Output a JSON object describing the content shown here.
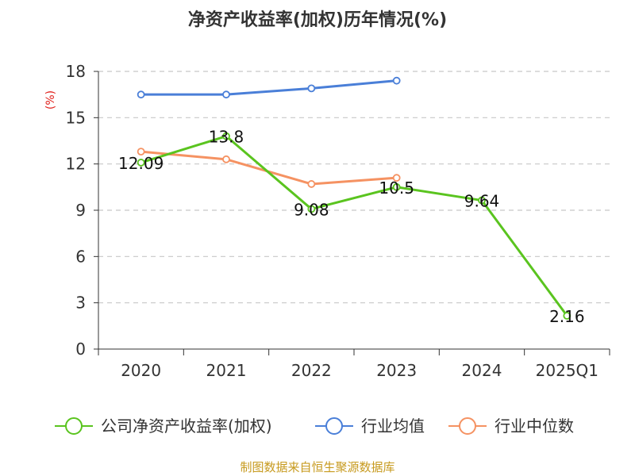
{
  "chart_data": {
    "type": "line",
    "title": "净资产收益率(加权)历年情况(%)",
    "ylabel": "(%)",
    "xlabel": "",
    "categories": [
      "2020",
      "2021",
      "2022",
      "2023",
      "2024",
      "2025Q1"
    ],
    "ylim": [
      0,
      18
    ],
    "yticks": [
      0,
      3,
      6,
      9,
      12,
      15,
      18
    ],
    "grid": true,
    "legend_position": "bottom",
    "series": [
      {
        "name": "公司净资产收益率(加权)",
        "color": "#5ac41f",
        "values": [
          12.09,
          13.8,
          9.08,
          10.5,
          9.64,
          2.16
        ],
        "show_labels": true
      },
      {
        "name": "行业均值",
        "color": "#4a7fd8",
        "values": [
          16.5,
          16.5,
          16.9,
          17.4,
          null,
          null
        ],
        "show_labels": false
      },
      {
        "name": "行业中位数",
        "color": "#f59262",
        "values": [
          12.8,
          12.3,
          10.7,
          11.1,
          null,
          null
        ],
        "show_labels": false
      }
    ]
  },
  "footer": {
    "source": "制图数据来自恒生聚源数据库"
  }
}
